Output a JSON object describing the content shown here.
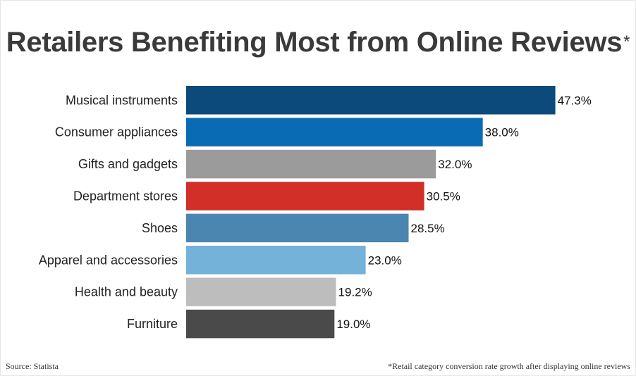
{
  "chart_data": {
    "type": "bar",
    "orientation": "horizontal",
    "title": "Retailers Benefiting Most from Online Reviews",
    "title_marker": "*",
    "categories": [
      "Musical instruments",
      "Consumer appliances",
      "Gifts and gadgets",
      "Department stores",
      "Shoes",
      "Apparel and accessories",
      "Health and beauty",
      "Furniture"
    ],
    "values": [
      47.3,
      38.0,
      32.0,
      30.5,
      28.5,
      23.0,
      19.2,
      19.0
    ],
    "value_labels": [
      "47.3%",
      "38.0%",
      "32.0%",
      "30.5%",
      "28.5%",
      "23.0%",
      "19.2%",
      "19.0%"
    ],
    "colors": [
      "#0d4a7c",
      "#0a6bb5",
      "#9b9b9b",
      "#d12f27",
      "#4a86b0",
      "#74b2d9",
      "#bdbdbd",
      "#4a4a4a"
    ],
    "xlim": [
      0,
      50
    ],
    "grid": false,
    "legend": "none"
  },
  "footer": {
    "source": "Source: Statista",
    "footnote": "*Retail category conversion rate growth after displaying online reviews"
  }
}
